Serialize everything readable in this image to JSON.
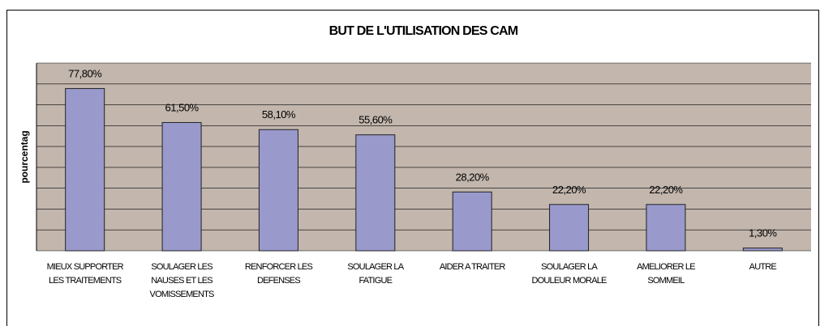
{
  "chart_data": {
    "type": "bar",
    "title": "BUT DE L'UTILISATION DES CAM",
    "ylabel": "pourcentag",
    "categories": [
      "MIEUX SUPPORTER LES TRAITEMENTS",
      "SOULAGER LES NAUSES ET LES VOMISSEMENTS",
      "RENFORCER LES DEFENSES",
      "SOULAGER LA FATIGUE",
      "AIDER A TRAITER",
      "SOULAGER LA DOULEUR MORALE",
      "AMELIORER LE SOMMEIL",
      "AUTRE"
    ],
    "values": [
      77.8,
      61.5,
      58.1,
      55.6,
      28.2,
      22.2,
      22.2,
      1.3
    ],
    "value_labels": [
      "77,80%",
      "61,50%",
      "58,10%",
      "55,60%",
      "28,20%",
      "22,20%",
      "22,20%",
      "1,30%"
    ],
    "color": "#9999cc",
    "ylim": [
      0,
      90
    ],
    "yticks": [
      0,
      10,
      20,
      30,
      40,
      50,
      60,
      70,
      80,
      90
    ],
    "grid": true
  }
}
